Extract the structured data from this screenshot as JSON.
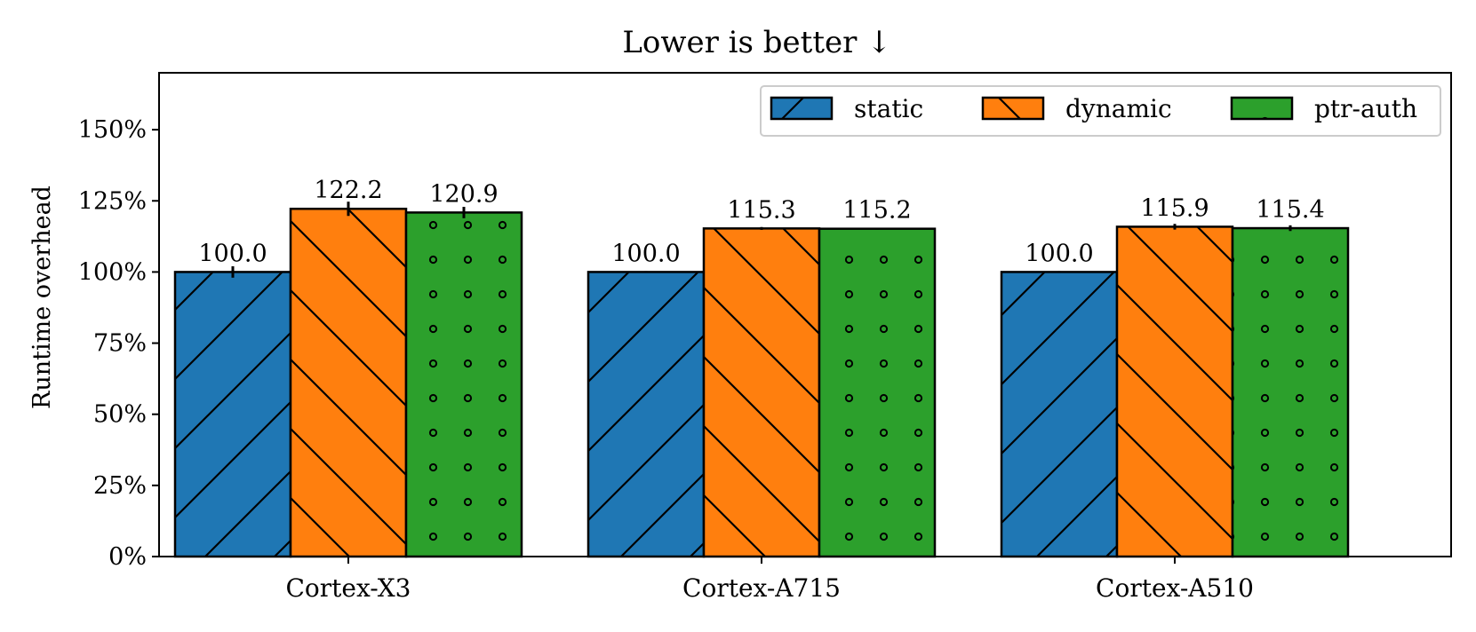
{
  "chart_data": {
    "type": "bar",
    "title": "Lower is better ↓",
    "xlabel": "",
    "ylabel": "Runtime overhead",
    "categories": [
      "Cortex-X3",
      "Cortex-A715",
      "Cortex-A510"
    ],
    "ylim": [
      0,
      170
    ],
    "yticks": [
      0,
      25,
      50,
      75,
      100,
      125,
      150
    ],
    "ytick_labels": [
      "0%",
      "25%",
      "50%",
      "75%",
      "100%",
      "125%",
      "150%"
    ],
    "grid": false,
    "legend_position": "top-right",
    "series": [
      {
        "name": "static",
        "color": "#1f77b4",
        "hatch": "forward-diagonal",
        "values": [
          100.0,
          100.0,
          100.0
        ],
        "errors": [
          2.0,
          0.3,
          0.3
        ],
        "labels": [
          "100.0",
          "100.0",
          "100.0"
        ]
      },
      {
        "name": "dynamic",
        "color": "#ff7f0e",
        "hatch": "back-diagonal",
        "values": [
          122.2,
          115.3,
          115.9
        ],
        "errors": [
          2.5,
          0.5,
          1.0
        ],
        "labels": [
          "122.2",
          "115.3",
          "115.9"
        ]
      },
      {
        "name": "ptr-auth",
        "color": "#2ca02c",
        "hatch": "small-circles",
        "values": [
          120.9,
          115.2,
          115.4
        ],
        "errors": [
          2.0,
          0.3,
          1.0
        ],
        "labels": [
          "120.9",
          "115.2",
          "115.4"
        ]
      }
    ]
  }
}
